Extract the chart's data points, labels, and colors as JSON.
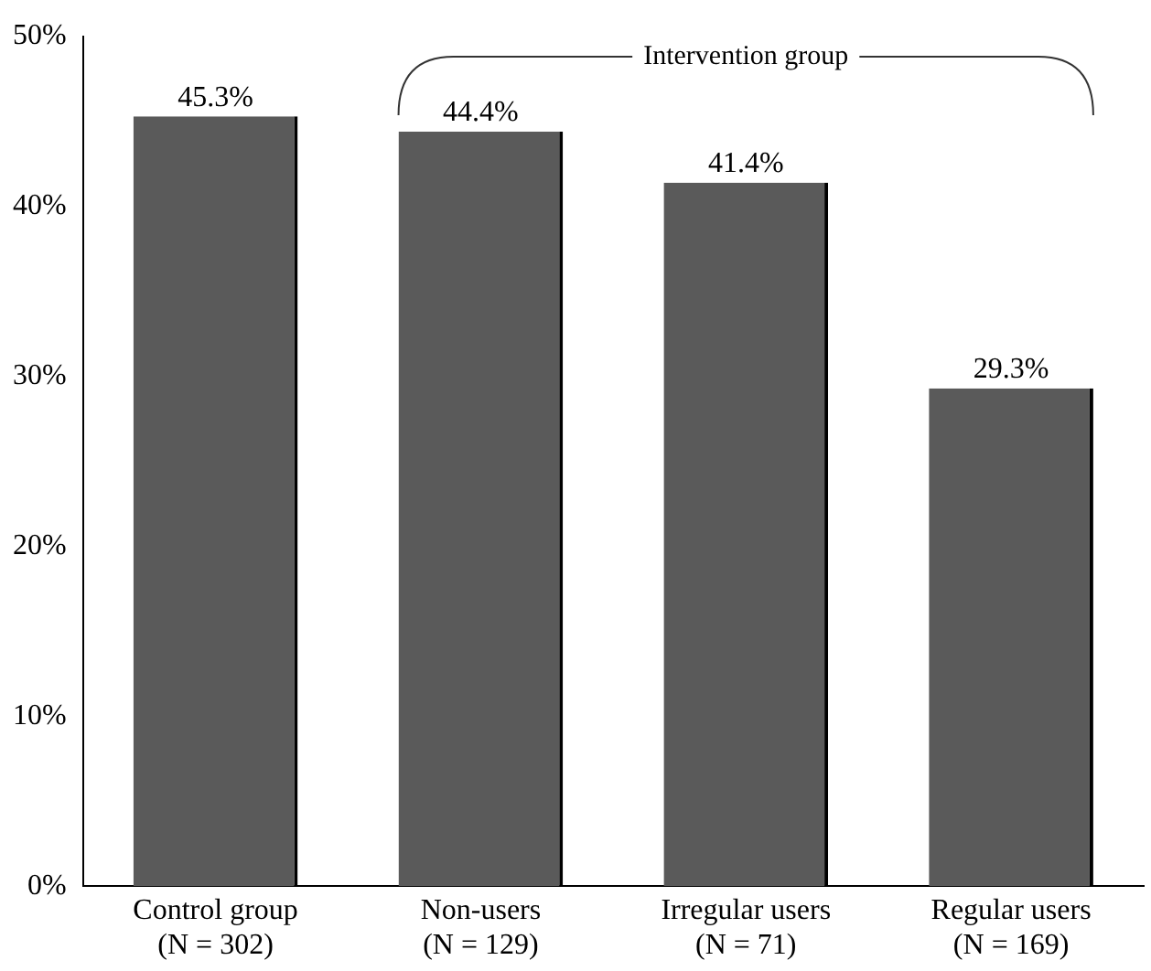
{
  "chart_data": {
    "type": "bar",
    "categories": [
      "Control group\n(N = 302)",
      "Non-users\n(N = 129)",
      "Irregular users\n(N = 71)",
      "Regular users\n(N = 169)"
    ],
    "values": [
      45.3,
      44.4,
      41.4,
      29.3
    ],
    "value_labels": [
      "45.3%",
      "44.4%",
      "41.4%",
      "29.3%"
    ],
    "color": "#5a5a5a",
    "ylim": [
      0,
      50
    ],
    "yticks": [
      {
        "value": 0,
        "label": "0%"
      },
      {
        "value": 10,
        "label": "10%"
      },
      {
        "value": 20,
        "label": "20%"
      },
      {
        "value": 30,
        "label": "30%"
      },
      {
        "value": 40,
        "label": "40%"
      },
      {
        "value": 50,
        "label": "50%"
      }
    ],
    "annotations": [
      "Intervention group"
    ],
    "grid": false,
    "legend": false
  }
}
